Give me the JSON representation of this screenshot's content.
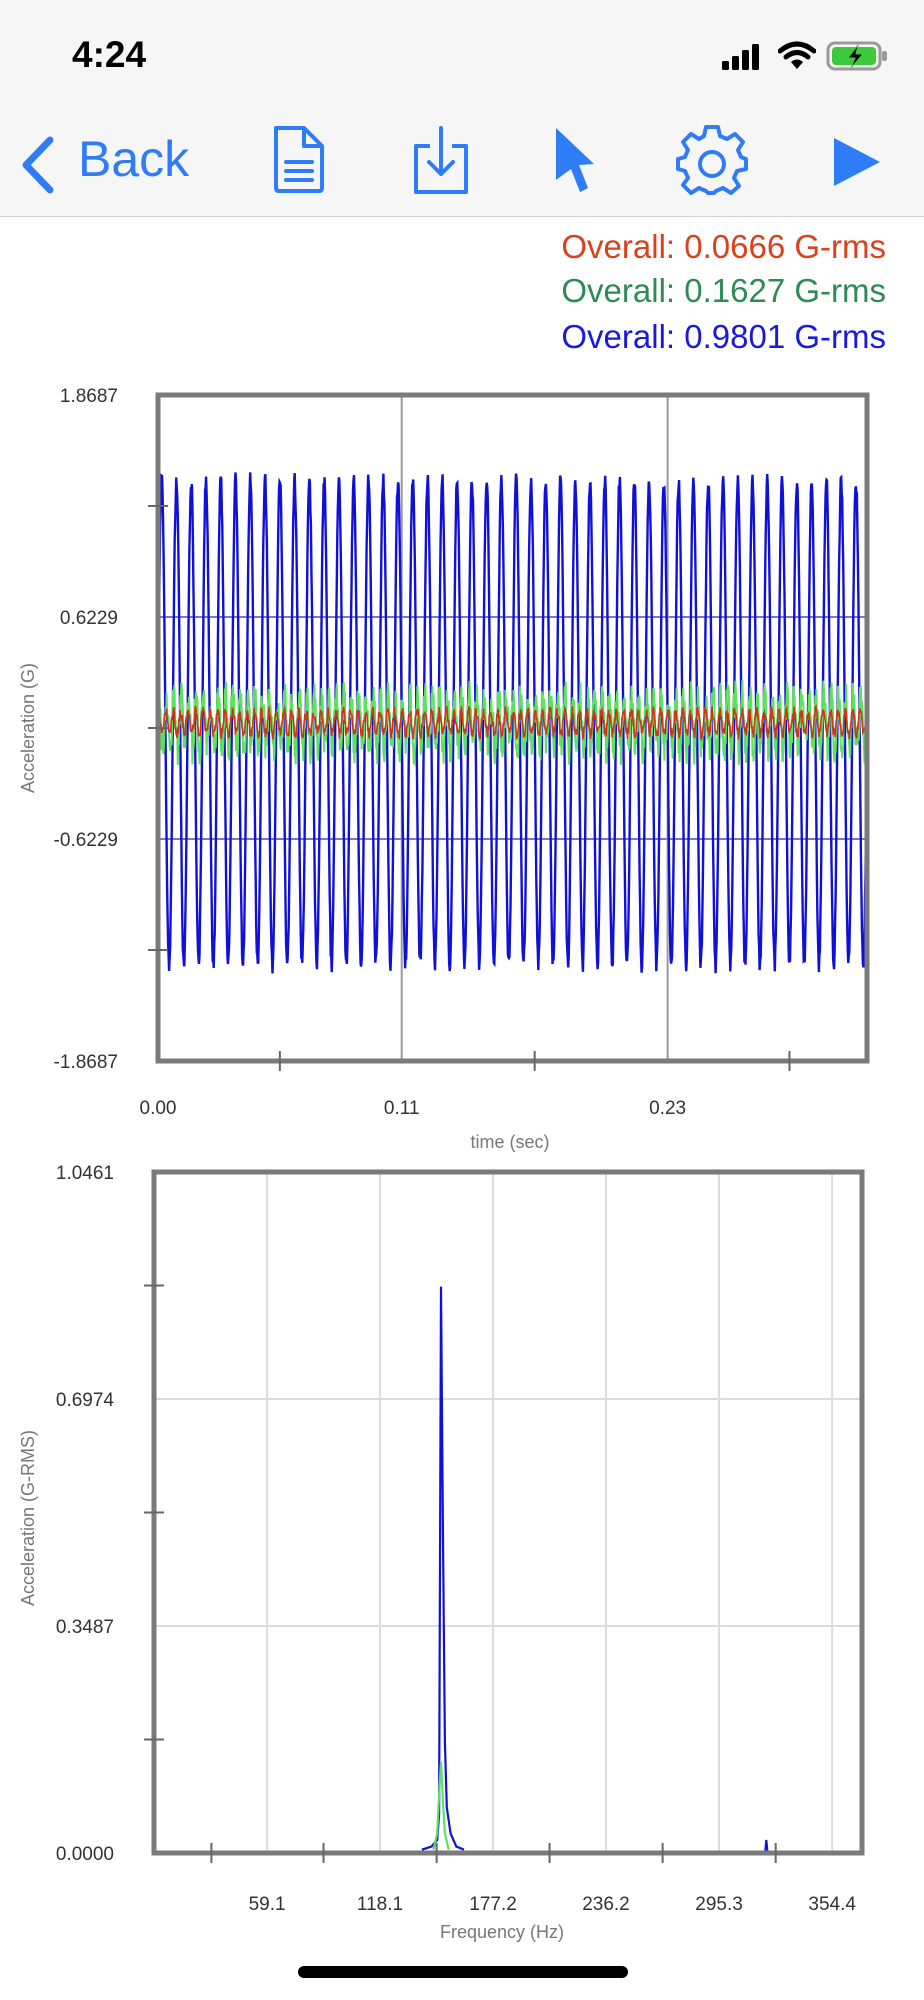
{
  "status": {
    "time": "4:24"
  },
  "toolbar": {
    "back_label": "Back",
    "icons": [
      "chevron-left-icon",
      "document-icon",
      "download-icon",
      "pointer-icon",
      "gear-icon",
      "play-icon"
    ],
    "accent": "#2e7cf6"
  },
  "overall": [
    {
      "text": "Overall: 0.0666 G-rms",
      "color": "#d9411e"
    },
    {
      "text": "Overall: 0.1627 G-rms",
      "color": "#2e8b57"
    },
    {
      "text": "Overall: 0.9801 G-rms",
      "color": "#1a1adb"
    }
  ],
  "chart_data": [
    {
      "type": "line",
      "xlabel": "time (sec)",
      "ylabel": "Acceleration (G)",
      "ylim": [
        -1.8687,
        1.8687
      ],
      "xlim": [
        0.0,
        0.32
      ],
      "xticks": [
        "0.00",
        "0.11",
        "0.23"
      ],
      "yticks": [
        "1.8687",
        "0.6229",
        "-0.6229",
        "-1.8687"
      ],
      "grid": true,
      "series": [
        {
          "color": "#1010d8",
          "frequency_hz": 150,
          "amplitude": 1.38
        },
        {
          "color": "#5fe05f",
          "amplitude": 0.23
        },
        {
          "color": "#c8381a",
          "amplitude": 0.09
        }
      ]
    },
    {
      "type": "line",
      "xlabel": "Frequency (Hz)",
      "ylabel": "Acceleration (G-RMS)",
      "ylim": [
        0.0,
        1.0461
      ],
      "xlim": [
        0,
        370
      ],
      "xticks": [
        "59.1",
        "118.1",
        "177.2",
        "236.2",
        "295.3",
        "354.4"
      ],
      "yticks": [
        "1.0461",
        "0.6974",
        "0.3487",
        "0.0000"
      ],
      "grid": true,
      "series": [
        {
          "color": "#1010d8",
          "x": [
            140,
            145,
            148,
            149,
            150,
            151,
            152,
            153,
            155,
            158,
            162,
            320
          ],
          "y": [
            0.005,
            0.01,
            0.02,
            0.06,
            0.87,
            0.5,
            0.17,
            0.07,
            0.03,
            0.01,
            0.005,
            0.02
          ]
        },
        {
          "color": "#5fe05f",
          "x": [
            146,
            148,
            149,
            150,
            151,
            152,
            154
          ],
          "y": [
            0.005,
            0.03,
            0.09,
            0.14,
            0.08,
            0.03,
            0.005
          ]
        }
      ]
    }
  ]
}
